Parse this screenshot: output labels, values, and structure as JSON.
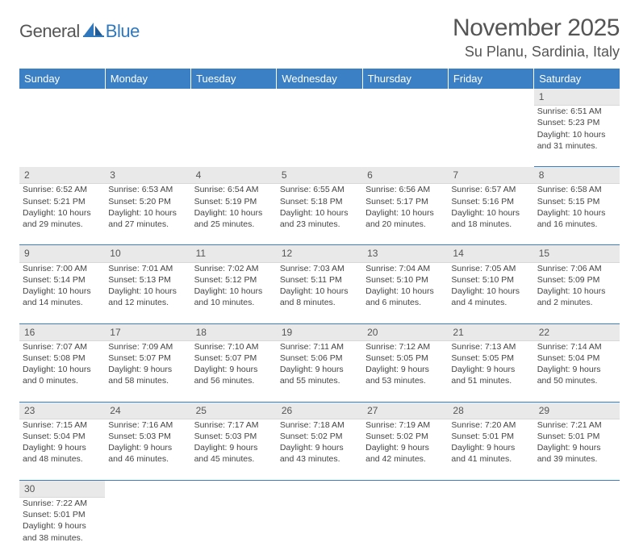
{
  "brand": {
    "part1": "General",
    "part2": "Blue"
  },
  "title": "November 2025",
  "location": "Su Planu, Sardinia, Italy",
  "colors": {
    "header_bg": "#3b80c4",
    "header_text": "#ffffff",
    "daynum_bg": "#e9e9e9",
    "rule": "#3b80c4",
    "text": "#444444",
    "title_text": "#555555"
  },
  "typography": {
    "title_fontsize": 30,
    "location_fontsize": 18,
    "weekday_fontsize": 13,
    "cell_fontsize": 10.5
  },
  "weekdays": [
    "Sunday",
    "Monday",
    "Tuesday",
    "Wednesday",
    "Thursday",
    "Friday",
    "Saturday"
  ],
  "weeks": [
    {
      "days": [
        null,
        null,
        null,
        null,
        null,
        null,
        {
          "n": "1",
          "sunrise": "Sunrise: 6:51 AM",
          "sunset": "Sunset: 5:23 PM",
          "daylight1": "Daylight: 10 hours",
          "daylight2": "and 31 minutes."
        }
      ]
    },
    {
      "days": [
        {
          "n": "2",
          "sunrise": "Sunrise: 6:52 AM",
          "sunset": "Sunset: 5:21 PM",
          "daylight1": "Daylight: 10 hours",
          "daylight2": "and 29 minutes."
        },
        {
          "n": "3",
          "sunrise": "Sunrise: 6:53 AM",
          "sunset": "Sunset: 5:20 PM",
          "daylight1": "Daylight: 10 hours",
          "daylight2": "and 27 minutes."
        },
        {
          "n": "4",
          "sunrise": "Sunrise: 6:54 AM",
          "sunset": "Sunset: 5:19 PM",
          "daylight1": "Daylight: 10 hours",
          "daylight2": "and 25 minutes."
        },
        {
          "n": "5",
          "sunrise": "Sunrise: 6:55 AM",
          "sunset": "Sunset: 5:18 PM",
          "daylight1": "Daylight: 10 hours",
          "daylight2": "and 23 minutes."
        },
        {
          "n": "6",
          "sunrise": "Sunrise: 6:56 AM",
          "sunset": "Sunset: 5:17 PM",
          "daylight1": "Daylight: 10 hours",
          "daylight2": "and 20 minutes."
        },
        {
          "n": "7",
          "sunrise": "Sunrise: 6:57 AM",
          "sunset": "Sunset: 5:16 PM",
          "daylight1": "Daylight: 10 hours",
          "daylight2": "and 18 minutes."
        },
        {
          "n": "8",
          "sunrise": "Sunrise: 6:58 AM",
          "sunset": "Sunset: 5:15 PM",
          "daylight1": "Daylight: 10 hours",
          "daylight2": "and 16 minutes."
        }
      ]
    },
    {
      "days": [
        {
          "n": "9",
          "sunrise": "Sunrise: 7:00 AM",
          "sunset": "Sunset: 5:14 PM",
          "daylight1": "Daylight: 10 hours",
          "daylight2": "and 14 minutes."
        },
        {
          "n": "10",
          "sunrise": "Sunrise: 7:01 AM",
          "sunset": "Sunset: 5:13 PM",
          "daylight1": "Daylight: 10 hours",
          "daylight2": "and 12 minutes."
        },
        {
          "n": "11",
          "sunrise": "Sunrise: 7:02 AM",
          "sunset": "Sunset: 5:12 PM",
          "daylight1": "Daylight: 10 hours",
          "daylight2": "and 10 minutes."
        },
        {
          "n": "12",
          "sunrise": "Sunrise: 7:03 AM",
          "sunset": "Sunset: 5:11 PM",
          "daylight1": "Daylight: 10 hours",
          "daylight2": "and 8 minutes."
        },
        {
          "n": "13",
          "sunrise": "Sunrise: 7:04 AM",
          "sunset": "Sunset: 5:10 PM",
          "daylight1": "Daylight: 10 hours",
          "daylight2": "and 6 minutes."
        },
        {
          "n": "14",
          "sunrise": "Sunrise: 7:05 AM",
          "sunset": "Sunset: 5:10 PM",
          "daylight1": "Daylight: 10 hours",
          "daylight2": "and 4 minutes."
        },
        {
          "n": "15",
          "sunrise": "Sunrise: 7:06 AM",
          "sunset": "Sunset: 5:09 PM",
          "daylight1": "Daylight: 10 hours",
          "daylight2": "and 2 minutes."
        }
      ]
    },
    {
      "days": [
        {
          "n": "16",
          "sunrise": "Sunrise: 7:07 AM",
          "sunset": "Sunset: 5:08 PM",
          "daylight1": "Daylight: 10 hours",
          "daylight2": "and 0 minutes."
        },
        {
          "n": "17",
          "sunrise": "Sunrise: 7:09 AM",
          "sunset": "Sunset: 5:07 PM",
          "daylight1": "Daylight: 9 hours",
          "daylight2": "and 58 minutes."
        },
        {
          "n": "18",
          "sunrise": "Sunrise: 7:10 AM",
          "sunset": "Sunset: 5:07 PM",
          "daylight1": "Daylight: 9 hours",
          "daylight2": "and 56 minutes."
        },
        {
          "n": "19",
          "sunrise": "Sunrise: 7:11 AM",
          "sunset": "Sunset: 5:06 PM",
          "daylight1": "Daylight: 9 hours",
          "daylight2": "and 55 minutes."
        },
        {
          "n": "20",
          "sunrise": "Sunrise: 7:12 AM",
          "sunset": "Sunset: 5:05 PM",
          "daylight1": "Daylight: 9 hours",
          "daylight2": "and 53 minutes."
        },
        {
          "n": "21",
          "sunrise": "Sunrise: 7:13 AM",
          "sunset": "Sunset: 5:05 PM",
          "daylight1": "Daylight: 9 hours",
          "daylight2": "and 51 minutes."
        },
        {
          "n": "22",
          "sunrise": "Sunrise: 7:14 AM",
          "sunset": "Sunset: 5:04 PM",
          "daylight1": "Daylight: 9 hours",
          "daylight2": "and 50 minutes."
        }
      ]
    },
    {
      "days": [
        {
          "n": "23",
          "sunrise": "Sunrise: 7:15 AM",
          "sunset": "Sunset: 5:04 PM",
          "daylight1": "Daylight: 9 hours",
          "daylight2": "and 48 minutes."
        },
        {
          "n": "24",
          "sunrise": "Sunrise: 7:16 AM",
          "sunset": "Sunset: 5:03 PM",
          "daylight1": "Daylight: 9 hours",
          "daylight2": "and 46 minutes."
        },
        {
          "n": "25",
          "sunrise": "Sunrise: 7:17 AM",
          "sunset": "Sunset: 5:03 PM",
          "daylight1": "Daylight: 9 hours",
          "daylight2": "and 45 minutes."
        },
        {
          "n": "26",
          "sunrise": "Sunrise: 7:18 AM",
          "sunset": "Sunset: 5:02 PM",
          "daylight1": "Daylight: 9 hours",
          "daylight2": "and 43 minutes."
        },
        {
          "n": "27",
          "sunrise": "Sunrise: 7:19 AM",
          "sunset": "Sunset: 5:02 PM",
          "daylight1": "Daylight: 9 hours",
          "daylight2": "and 42 minutes."
        },
        {
          "n": "28",
          "sunrise": "Sunrise: 7:20 AM",
          "sunset": "Sunset: 5:01 PM",
          "daylight1": "Daylight: 9 hours",
          "daylight2": "and 41 minutes."
        },
        {
          "n": "29",
          "sunrise": "Sunrise: 7:21 AM",
          "sunset": "Sunset: 5:01 PM",
          "daylight1": "Daylight: 9 hours",
          "daylight2": "and 39 minutes."
        }
      ]
    },
    {
      "days": [
        {
          "n": "30",
          "sunrise": "Sunrise: 7:22 AM",
          "sunset": "Sunset: 5:01 PM",
          "daylight1": "Daylight: 9 hours",
          "daylight2": "and 38 minutes."
        },
        null,
        null,
        null,
        null,
        null,
        null
      ]
    }
  ]
}
